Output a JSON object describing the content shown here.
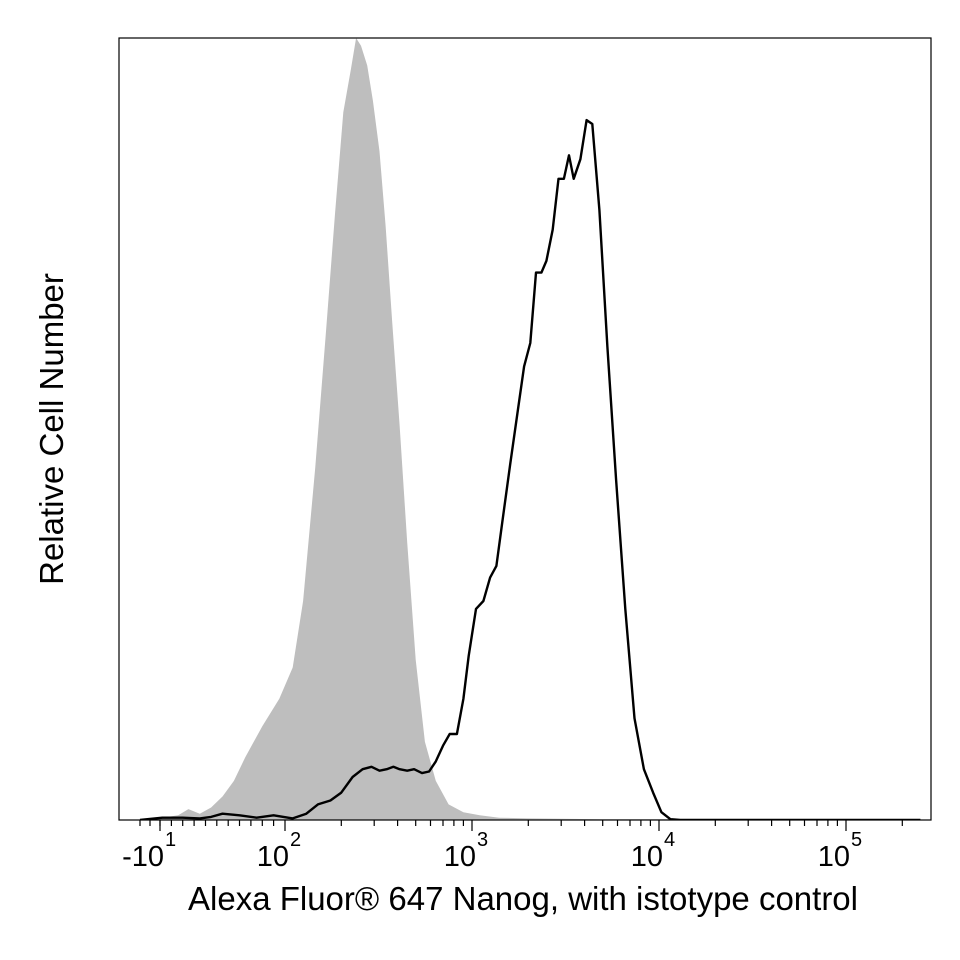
{
  "chart_data": {
    "type": "area",
    "xlabel": "Alexa Fluor® 647 Nanog, with istotype control",
    "ylabel": "Relative Cell Number",
    "x_scale": "biexponential",
    "xlim": [
      -30,
      250000
    ],
    "ylim": [
      0,
      100
    ],
    "grid": false,
    "legend": "none",
    "x_ticks": [
      {
        "base": "-10",
        "exp": "1",
        "value": -10
      },
      {
        "base": "10",
        "exp": "2",
        "value": 100
      },
      {
        "base": "10",
        "exp": "3",
        "value": 1000
      },
      {
        "base": "10",
        "exp": "4",
        "value": 10000
      },
      {
        "base": "10",
        "exp": "5",
        "value": 100000
      }
    ],
    "series": [
      {
        "style": "filled",
        "color": "#bebebe",
        "x": [
          -30,
          -8,
          6,
          15,
          25,
          35,
          45,
          55,
          65,
          80,
          95,
          110,
          125,
          145,
          165,
          185,
          205,
          225,
          240,
          255,
          275,
          295,
          320,
          345,
          375,
          410,
          450,
          500,
          560,
          640,
          750,
          900,
          1100,
          1400,
          2000,
          5000,
          250000
        ],
        "y": [
          0,
          0.3,
          0.6,
          1.4,
          0.8,
          1.6,
          3.0,
          5.0,
          8.0,
          12.0,
          15.5,
          19.5,
          28.0,
          45.0,
          62.0,
          77.5,
          90.5,
          96.0,
          100.0,
          99.0,
          96.5,
          92.0,
          85.5,
          76.0,
          63.5,
          50.5,
          35.5,
          20.5,
          10.0,
          5.0,
          2.0,
          1.0,
          0.6,
          0.3,
          0.2,
          0.1,
          0.1
        ]
      },
      {
        "style": "line",
        "color": "#000000",
        "x": [
          -30,
          -8,
          10,
          25,
          35,
          45,
          60,
          75,
          90,
          110,
          130,
          150,
          175,
          200,
          230,
          260,
          290,
          320,
          350,
          380,
          410,
          450,
          490,
          540,
          590,
          640,
          700,
          760,
          830,
          900,
          960,
          1050,
          1150,
          1250,
          1350,
          1450,
          1600,
          1750,
          1900,
          2050,
          2200,
          2350,
          2500,
          2700,
          2900,
          3100,
          3300,
          3500,
          3800,
          4100,
          4400,
          4800,
          5300,
          5900,
          6600,
          7400,
          8300,
          9300,
          10300,
          11500,
          13000,
          250000
        ],
        "y": [
          0,
          0.3,
          0.3,
          0.2,
          0.4,
          0.8,
          0.6,
          0.3,
          0.6,
          0.2,
          0.8,
          2.0,
          2.5,
          3.5,
          5.5,
          6.5,
          6.8,
          6.3,
          6.5,
          6.8,
          6.5,
          6.3,
          6.5,
          6.0,
          6.2,
          7.5,
          9.5,
          11.0,
          11.0,
          15.5,
          21.0,
          27.0,
          28.0,
          31.0,
          32.5,
          38.0,
          45.5,
          52.0,
          58.0,
          61.0,
          70.0,
          70.0,
          71.5,
          75.5,
          82.0,
          82.0,
          85.0,
          82.0,
          84.5,
          89.5,
          89.0,
          78.0,
          60.5,
          43.5,
          27.0,
          13.0,
          6.5,
          3.5,
          1.0,
          0.1,
          0,
          0
        ]
      }
    ]
  }
}
